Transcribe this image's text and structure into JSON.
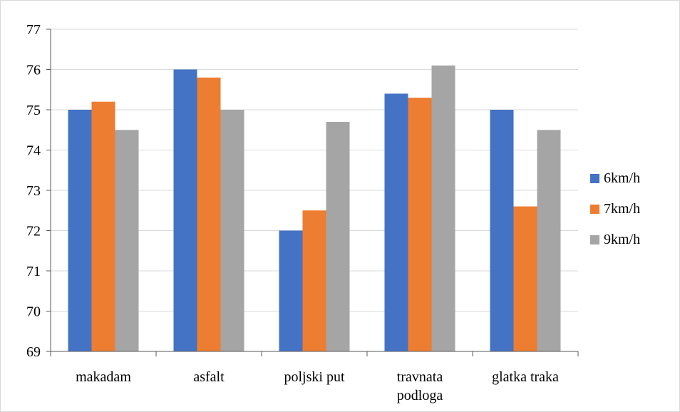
{
  "chart_data": {
    "type": "bar",
    "title": "",
    "xlabel": "",
    "ylabel": "",
    "categories": [
      [
        "makadam"
      ],
      [
        "asfalt"
      ],
      [
        "poljski put"
      ],
      [
        "travnata",
        "podloga"
      ],
      [
        "glatka traka"
      ]
    ],
    "series": [
      {
        "name": "6km/h",
        "color": "#4472c4",
        "values": [
          75.0,
          76.0,
          72.0,
          75.4,
          75.0
        ]
      },
      {
        "name": "7km/h",
        "color": "#ed7d31",
        "values": [
          75.2,
          75.8,
          72.5,
          75.3,
          72.6
        ]
      },
      {
        "name": "9km/h",
        "color": "#a5a5a5",
        "values": [
          74.5,
          75.0,
          74.7,
          76.1,
          74.5
        ]
      }
    ],
    "ylim": [
      69,
      77
    ],
    "yticks": [
      69,
      70,
      71,
      72,
      73,
      74,
      75,
      76,
      77
    ],
    "grid": true,
    "legend": "right"
  }
}
